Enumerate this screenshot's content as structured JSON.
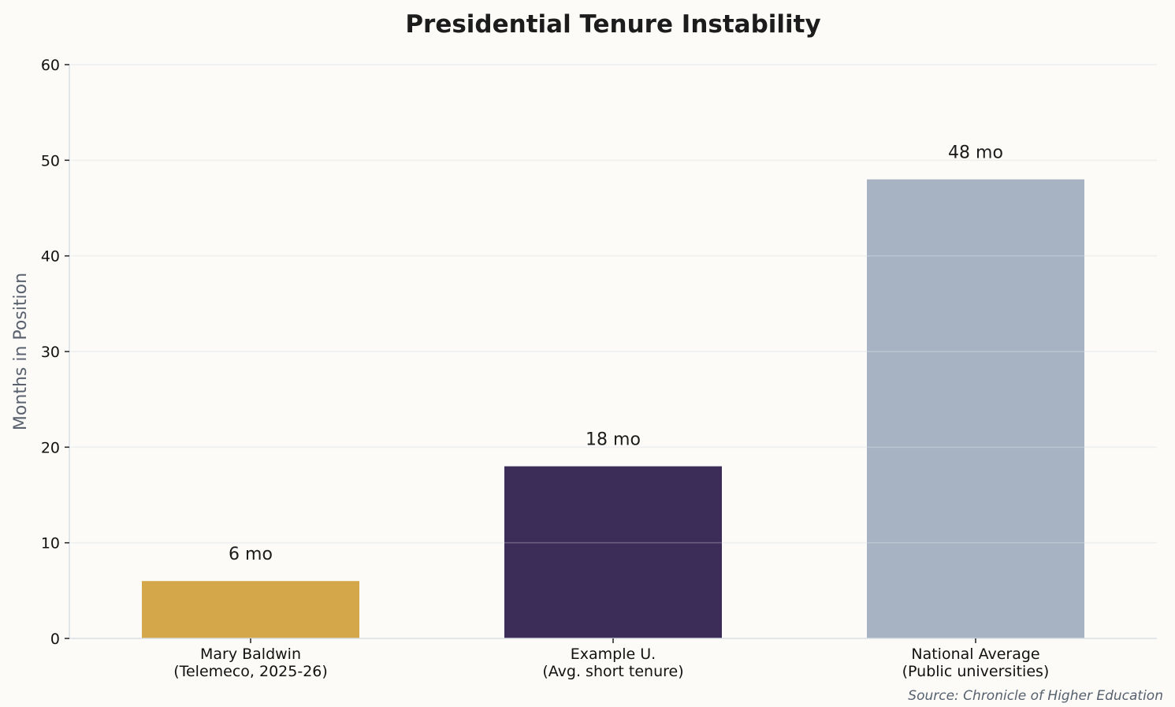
{
  "chart_data": {
    "type": "bar",
    "title": "Presidential Tenure Instability",
    "xlabel": "",
    "ylabel": "Months in Position",
    "ylim": [
      0,
      60
    ],
    "yticks": [
      0,
      10,
      20,
      30,
      40,
      50,
      60
    ],
    "grid": true,
    "categories": [
      [
        "Mary Baldwin",
        "(Telemeco, 2025-26)"
      ],
      [
        "Example U.",
        "(Avg. short tenure)"
      ],
      [
        "National Average",
        "(Public universities)"
      ]
    ],
    "values": [
      6,
      18,
      48
    ],
    "data_labels": [
      "6 mo",
      "18 mo",
      "48 mo"
    ],
    "colors": [
      "#d4a84a",
      "#3b2d58",
      "#a7b3c3"
    ],
    "source": "Source: Chronicle of Higher Education"
  }
}
